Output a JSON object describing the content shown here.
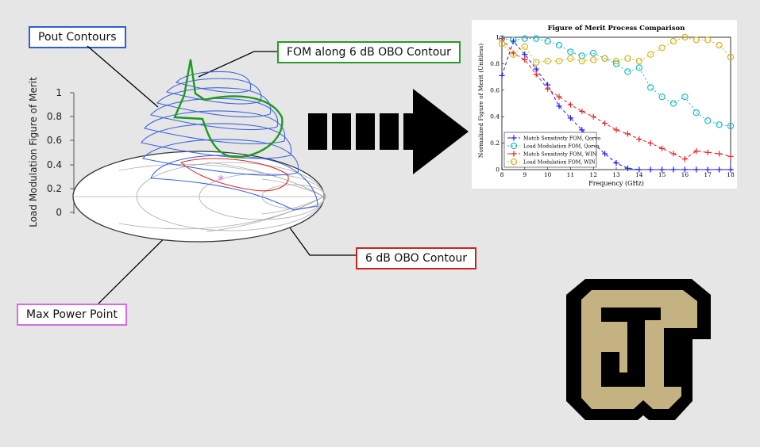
{
  "callouts": {
    "pout": {
      "label": "Pout Contours",
      "color": "#2f5fcf"
    },
    "fom": {
      "label": "FOM along 6 dB OBO Contour",
      "color": "#2a9a2a"
    },
    "obo": {
      "label": "6 dB OBO Contour",
      "color": "#cc2222"
    },
    "max_power": {
      "label": "Max Power Point",
      "color": "#d86ae6"
    }
  },
  "left_plot": {
    "zlabel": "Load Modulation Figure of Merit",
    "z_ticks": [
      "0",
      "0.2",
      "0.4",
      "0.6",
      "0.8",
      "1"
    ],
    "max_power_marker": "*"
  },
  "arrow": {
    "icon": "dashed-right-arrow-icon",
    "color": "#000000"
  },
  "logo": {
    "icon": "cu-logo-icon",
    "text": "CU",
    "gold": "#c4b282",
    "black": "#000000"
  },
  "chart_data": {
    "type": "line",
    "title": "Figure of Merit Process Comparison",
    "xlabel": "Frequency (GHz)",
    "ylabel": "Normalized Figure of Merit (Unitless)",
    "xlim": [
      8,
      18
    ],
    "ylim": [
      0,
      1
    ],
    "x_ticks": [
      "8",
      "9",
      "10",
      "11",
      "12",
      "13",
      "14",
      "15",
      "16",
      "17",
      "18"
    ],
    "y_ticks": [
      "0",
      "0.2",
      "0.4",
      "0.6",
      "0.8",
      "1"
    ],
    "legend_position": "bottom-left",
    "series": [
      {
        "name": "Match Sensitivity FOM, Qorvo",
        "color": "#1a1aff",
        "marker": "+",
        "dash": "4,3",
        "x": [
          8,
          8.5,
          9,
          9.5,
          10,
          10.5,
          11,
          11.5,
          12,
          12.5,
          13,
          13.5,
          14,
          14.5,
          15,
          15.5,
          16,
          16.5,
          17,
          17.5,
          18
        ],
        "y": [
          0.71,
          0.97,
          0.87,
          0.76,
          0.64,
          0.48,
          0.39,
          0.3,
          0.2,
          0.12,
          0.05,
          0.01,
          0.0,
          0.0,
          0.0,
          0.0,
          0.0,
          0.0,
          0.0,
          0.0,
          0.0
        ]
      },
      {
        "name": "Load Modulation FOM, Qorvo",
        "color": "#10b8c8",
        "marker": "o",
        "dash": "2,3",
        "x": [
          8,
          8.5,
          9,
          9.5,
          10,
          10.5,
          11,
          11.5,
          12,
          12.5,
          13,
          13.5,
          14,
          14.5,
          15,
          15.5,
          16,
          16.5,
          17,
          17.5,
          18
        ],
        "y": [
          0.99,
          0.98,
          0.99,
          0.99,
          0.97,
          0.94,
          0.89,
          0.86,
          0.88,
          0.84,
          0.8,
          0.74,
          0.77,
          0.62,
          0.55,
          0.5,
          0.55,
          0.43,
          0.37,
          0.34,
          0.33
        ]
      },
      {
        "name": "Match Sensitivity FOM, WIN",
        "color": "#e82020",
        "marker": "+",
        "dash": "4,3",
        "x": [
          8,
          8.5,
          9,
          9.5,
          10,
          10.5,
          11,
          11.5,
          12,
          12.5,
          13,
          13.5,
          14,
          14.5,
          15,
          15.5,
          16,
          16.5,
          17,
          17.5,
          18
        ],
        "y": [
          0.99,
          0.88,
          0.83,
          0.72,
          0.61,
          0.55,
          0.49,
          0.44,
          0.4,
          0.35,
          0.3,
          0.27,
          0.23,
          0.2,
          0.16,
          0.12,
          0.08,
          0.14,
          0.13,
          0.12,
          0.1
        ]
      },
      {
        "name": "Load Modulation FOM, WIN",
        "color": "#d4b010",
        "marker": "o",
        "dash": "2,3",
        "x": [
          8,
          8.5,
          9,
          9.5,
          10,
          10.5,
          11,
          11.5,
          12,
          12.5,
          13,
          13.5,
          14,
          14.5,
          15,
          15.5,
          16,
          16.5,
          17,
          17.5,
          18
        ],
        "y": [
          0.95,
          0.87,
          0.93,
          0.81,
          0.82,
          0.82,
          0.84,
          0.82,
          0.83,
          0.84,
          0.82,
          0.84,
          0.82,
          0.87,
          0.92,
          0.97,
          1.0,
          0.98,
          0.98,
          0.94,
          0.85
        ]
      }
    ]
  }
}
